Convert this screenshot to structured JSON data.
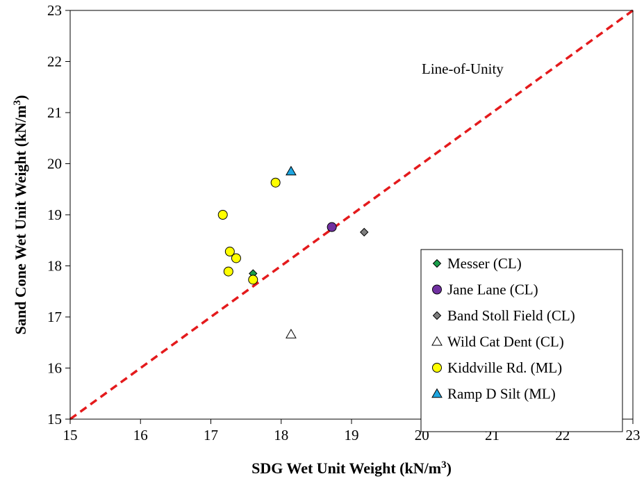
{
  "chart_data": {
    "type": "scatter",
    "title": "",
    "xlabel": "SDG Wet Unit Weight (kN/m³)",
    "ylabel": "Sand Cone Wet Unit Weight (kN/m³)",
    "xlabel_parts": {
      "main": "SDG Wet Unit Weight (kN/m",
      "sup": "3",
      "tail": ")"
    },
    "ylabel_parts": {
      "main": "Sand Cone Wet Unit Weight (kN/m",
      "sup": "3",
      "tail": ")"
    },
    "xlim": [
      15,
      23
    ],
    "ylim": [
      15,
      23
    ],
    "x_ticks": [
      "15",
      "16",
      "17",
      "18",
      "19",
      "20",
      "21",
      "22",
      "23"
    ],
    "y_ticks": [
      "15",
      "16",
      "17",
      "18",
      "19",
      "20",
      "21",
      "22",
      "23"
    ],
    "grid": false,
    "legend_position": "bottom-right",
    "reference_line": {
      "label": "Line-of-Unity",
      "from": [
        15,
        15
      ],
      "to": [
        23,
        23
      ],
      "color": "#e41a1c",
      "style": "dashed"
    },
    "series": [
      {
        "name": "Messer (CL)",
        "marker": "diamond",
        "color": "#1a9e4a",
        "points": [
          [
            17.6,
            17.85
          ]
        ]
      },
      {
        "name": "Jane Lane (CL)",
        "marker": "circle",
        "color": "#7030a0",
        "points": [
          [
            18.72,
            18.76
          ]
        ]
      },
      {
        "name": "Band Stoll Field (CL)",
        "marker": "diamond",
        "color": "#7f7f7f",
        "points": [
          [
            19.18,
            18.66
          ]
        ]
      },
      {
        "name": "Wild Cat Dent (CL)",
        "marker": "triangle",
        "color": "#ffffff",
        "points": [
          [
            18.14,
            16.66
          ]
        ]
      },
      {
        "name": "Kiddville Rd. (ML)",
        "marker": "circle",
        "color": "#ffff00",
        "points": [
          [
            17.92,
            19.63
          ],
          [
            17.17,
            19.0
          ],
          [
            17.27,
            18.28
          ],
          [
            17.36,
            18.15
          ],
          [
            17.25,
            17.89
          ],
          [
            17.6,
            17.73
          ]
        ]
      },
      {
        "name": "Ramp D Silt (ML)",
        "marker": "triangle",
        "color": "#1fa6e0",
        "points": [
          [
            18.14,
            19.85
          ]
        ]
      }
    ]
  }
}
